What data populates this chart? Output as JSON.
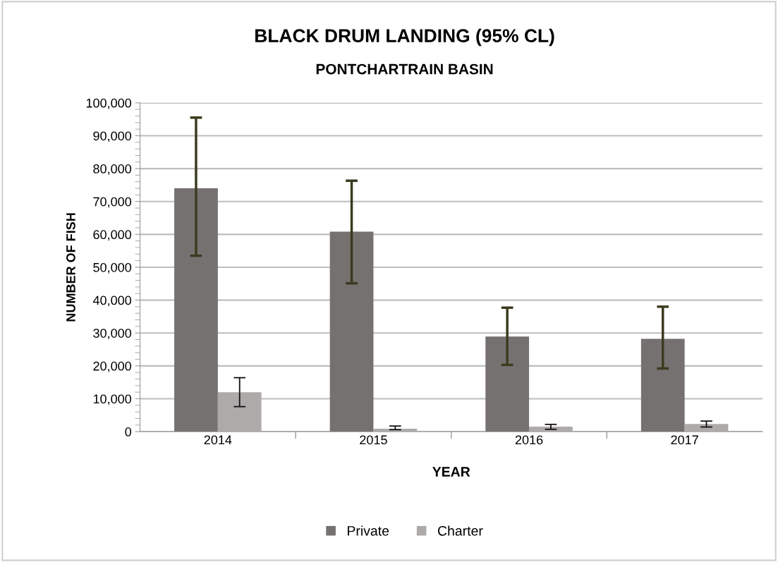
{
  "chart_data": {
    "type": "bar",
    "title": "BLACK DRUM LANDING (95% CL)",
    "subtitle": "PONTCHARTRAIN BASIN",
    "xlabel": "YEAR",
    "ylabel": "NUMBER OF FISH",
    "categories": [
      "2014",
      "2015",
      "2016",
      "2017"
    ],
    "series": [
      {
        "name": "Private",
        "color": "#767171",
        "values": [
          74000,
          60800,
          28900,
          28200
        ],
        "errors": [
          [
            53500,
            95500
          ],
          [
            45100,
            76300
          ],
          [
            20300,
            37700
          ],
          [
            19200,
            38000
          ]
        ]
      },
      {
        "name": "Charter",
        "color": "#aeaaaa",
        "values": [
          12000,
          900,
          1500,
          2300
        ],
        "errors": [
          [
            7600,
            16400
          ],
          [
            600,
            1700
          ],
          [
            700,
            2200
          ],
          [
            1400,
            3200
          ]
        ]
      }
    ],
    "ylim": [
      0,
      100000
    ],
    "yticks": [
      {
        "value": 0,
        "label": "0"
      },
      {
        "value": 10000,
        "label": "10,000"
      },
      {
        "value": 20000,
        "label": "20,000"
      },
      {
        "value": 30000,
        "label": "30,000"
      },
      {
        "value": 40000,
        "label": "40,000"
      },
      {
        "value": 50000,
        "label": "50,000"
      },
      {
        "value": 60000,
        "label": "60,000"
      },
      {
        "value": 70000,
        "label": "70,000"
      },
      {
        "value": 80000,
        "label": "80,000"
      },
      {
        "value": 90000,
        "label": "90,000"
      },
      {
        "value": 100000,
        "label": "100,000"
      }
    ],
    "grid": "y",
    "legend": "bottom"
  }
}
